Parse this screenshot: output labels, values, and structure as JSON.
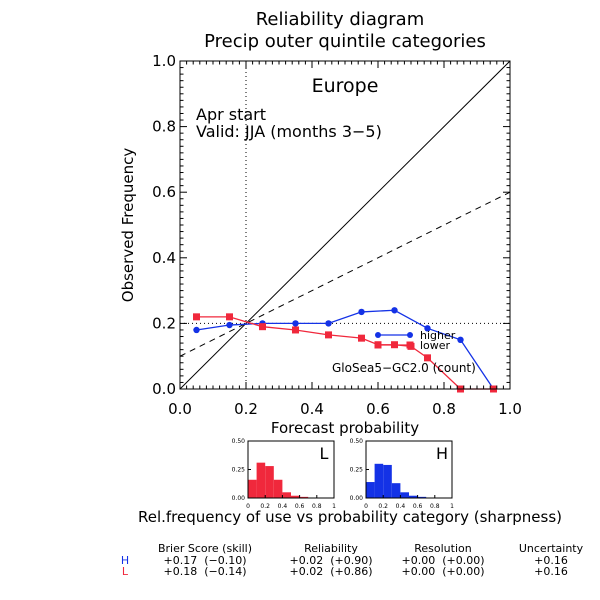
{
  "title": [
    "Reliability diagram",
    "Precip outer quintile categories"
  ],
  "region": "Europe",
  "annotation": [
    "Apr start",
    "Valid: JJA (months 3−5)"
  ],
  "model_label": "GloSea5−GC2.0  (count)",
  "sharpness_caption": "Rel.frequency of use vs probability category (sharpness)",
  "colors": {
    "higher": "#1432e6",
    "lower": "#f0283c",
    "text": "#000000"
  },
  "chart_data": [
    {
      "type": "line",
      "xlabel": "Forecast probability",
      "ylabel": "Observed Frequency",
      "xlim": [
        0,
        1
      ],
      "ylim": [
        0,
        1
      ],
      "x_ticks": [
        "0.0",
        "0.2",
        "0.4",
        "0.6",
        "0.8",
        "1.0"
      ],
      "y_ticks": [
        "0.0",
        "0.2",
        "0.4",
        "0.6",
        "0.8",
        "1.0"
      ],
      "climatology": 0.2,
      "series": [
        {
          "name": "higher",
          "color": "#1432e6",
          "marker": "circle",
          "x": [
            0.05,
            0.15,
            0.25,
            0.35,
            0.45,
            0.55,
            0.65,
            0.75,
            0.85,
            0.95
          ],
          "y": [
            0.18,
            0.195,
            0.2,
            0.2,
            0.2,
            0.235,
            0.24,
            0.185,
            0.15,
            0.0
          ]
        },
        {
          "name": "lower",
          "color": "#f0283c",
          "marker": "square",
          "x": [
            0.05,
            0.15,
            0.25,
            0.35,
            0.45,
            0.55,
            0.6,
            0.65,
            0.7,
            0.75,
            0.85,
            0.95
          ],
          "y": [
            0.22,
            0.22,
            0.19,
            0.18,
            0.165,
            0.155,
            0.135,
            0.135,
            0.13,
            0.095,
            0.0,
            0.0
          ]
        }
      ]
    },
    {
      "type": "bar",
      "label": "L",
      "color": "#f0283c",
      "x_ticks": [
        "0",
        "0.2",
        "0.4",
        "0.6",
        "0.8",
        "1"
      ],
      "y_ticks": [
        "0.00",
        "0.25",
        "0.50"
      ],
      "ylim": [
        0,
        0.5
      ],
      "values": [
        0.16,
        0.31,
        0.28,
        0.16,
        0.05,
        0.02,
        0.01,
        0.0,
        0.0,
        0.0
      ]
    },
    {
      "type": "bar",
      "label": "H",
      "color": "#1432e6",
      "x_ticks": [
        "0",
        "0.2",
        "0.4",
        "0.6",
        "0.8",
        "1"
      ],
      "y_ticks": [
        "0.00",
        "0.25",
        "0.50"
      ],
      "ylim": [
        0,
        0.5
      ],
      "values": [
        0.14,
        0.3,
        0.29,
        0.13,
        0.05,
        0.02,
        0.01,
        0.0,
        0.0,
        0.0
      ]
    },
    {
      "type": "table",
      "columns": [
        "Brier Score (skill)",
        "Reliability",
        "Resolution",
        "Uncertainty"
      ],
      "rows": [
        {
          "label": "H",
          "color": "#1432e6",
          "cells": [
            "+0.17  (−0.10)",
            "+0.02  (+0.90)",
            "+0.00  (+0.00)",
            "+0.16"
          ]
        },
        {
          "label": "L",
          "color": "#f0283c",
          "cells": [
            "+0.18  (−0.14)",
            "+0.02  (+0.86)",
            "+0.00  (+0.00)",
            "+0.16"
          ]
        }
      ]
    }
  ]
}
